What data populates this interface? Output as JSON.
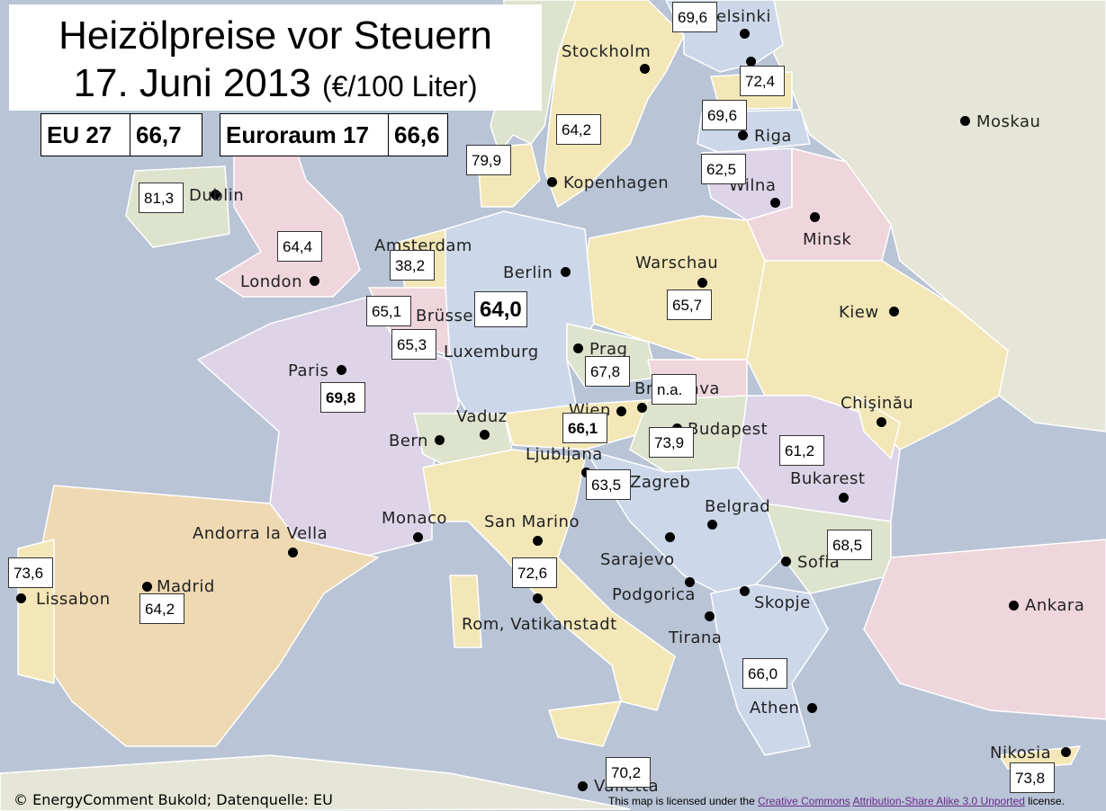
{
  "title": {
    "line1": "Heizölpreise vor Steuern",
    "line2": "17. Juni 2013",
    "unit": "(€/100 Liter)"
  },
  "summary": [
    {
      "label": "EU 27",
      "value": "66,7"
    },
    {
      "label": "Euroraum 17",
      "value": "66,6"
    }
  ],
  "cities": {
    "helsinki": "Helsinki",
    "stockholm": "Stockholm",
    "moskau": "Moskau",
    "riga": "Riga",
    "kopenhagen": "Kopenhagen",
    "wilna": "Wilna",
    "minsk": "Minsk",
    "amsterdam": "Amsterdam",
    "berlin": "Berlin",
    "warschau": "Warschau",
    "london": "London",
    "bruessel": "Brüssel",
    "kiew": "Kiew",
    "luxemburg": "Luxemburg",
    "prag": "Prag",
    "paris": "Paris",
    "bratislava": "Bratislava",
    "chisinau": "Chişinău",
    "wien": "Wien",
    "vaduz": "Vaduz",
    "budapest": "Budapest",
    "bern": "Bern",
    "ljubljana": "Ljubljana",
    "bukarest": "Bukarest",
    "zagreb": "Zagreb",
    "belgrad": "Belgrad",
    "monaco": "Monaco",
    "san_marino": "San Marino",
    "andorra": "Andorra la Vella",
    "sarajevo": "Sarajevo",
    "sofia": "Sofia",
    "madrid": "Madrid",
    "lissabon": "Lissabon",
    "podgorica": "Podgorica",
    "skopje": "Skopje",
    "ankara": "Ankara",
    "rom": "Rom, Vatikanstadt",
    "tirana": "Tirana",
    "athen": "Athen",
    "nikosia": "Nikosia",
    "valletta": "Valletta",
    "dublin": "Dublin"
  },
  "prices": {
    "finnland": "69,6",
    "estland": "72,4",
    "schweden": "64,2",
    "lettland": "69,6",
    "daenemark": "79,9",
    "litauen": "62,5",
    "irland": "81,3",
    "uk": "64,4",
    "niederlande": "38,2",
    "belgien": "65,1",
    "deutschland": "64,0",
    "luxemburg": "65,3",
    "polen": "65,7",
    "tschechien": "67,8",
    "frankreich": "69,8",
    "slowakei": "n.a.",
    "oesterreich": "66,1",
    "ungarn": "73,9",
    "rumaenien": "61,2",
    "slowenien": "63,5",
    "bulgarien": "68,5",
    "portugal": "73,6",
    "italien": "72,6",
    "spanien": "64,2",
    "griechenland": "66,0",
    "malta": "70,2",
    "zypern": "73,8"
  },
  "footer": {
    "source": "© EnergyComment Bukold; Datenquelle: EU",
    "license_pre": "This map is licensed under the ",
    "license_link1": "Creative Commons",
    "license_link2": "Attribution-Share Alike 3.0 Unported",
    "license_post": " license."
  },
  "colors": {
    "sea": "#b9c4d6",
    "yellow": "#f3e7b8",
    "purple": "#ddd4e8",
    "blue": "#ccd7ea",
    "green": "#dde3cc",
    "pink": "#efd6dc",
    "orange": "#eed9b2"
  }
}
